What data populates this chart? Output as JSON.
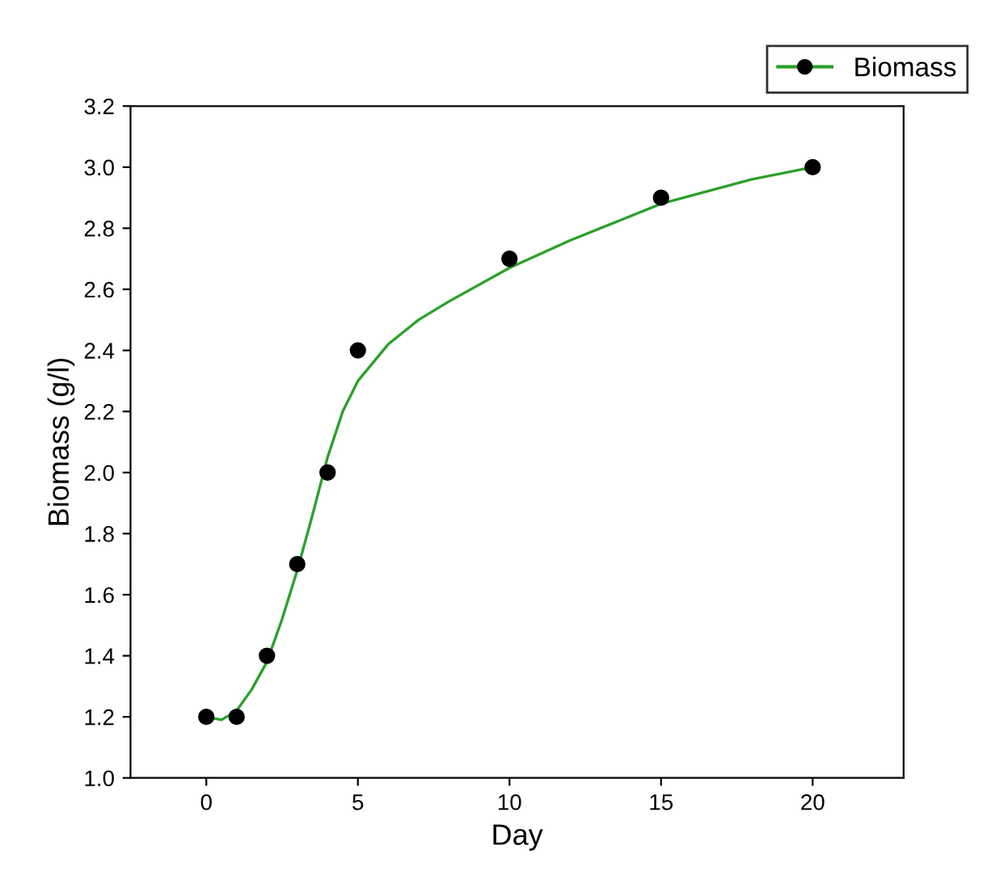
{
  "chart_data": {
    "type": "line",
    "xlabel": "Day",
    "ylabel": "Biomass (g/l)",
    "series": [
      {
        "name": "Biomass",
        "type": "scatter",
        "marker": "circle",
        "color": "#000000",
        "x": [
          0,
          1,
          2,
          3,
          4,
          5,
          10,
          15,
          20
        ],
        "values": [
          1.2,
          1.2,
          1.4,
          1.7,
          2.0,
          2.4,
          2.7,
          2.9,
          3.0
        ]
      },
      {
        "marker": "none",
        "color": "#2ca02c",
        "x": [
          0,
          0.5,
          1,
          1.5,
          2,
          2.5,
          3,
          3.5,
          4,
          4.5,
          5,
          6,
          7,
          8,
          10,
          12,
          15,
          18,
          20
        ],
        "values": [
          1.2,
          1.19,
          1.22,
          1.29,
          1.38,
          1.52,
          1.68,
          1.86,
          2.05,
          2.2,
          2.3,
          2.42,
          2.5,
          2.56,
          2.67,
          2.76,
          2.88,
          2.96,
          3.0
        ]
      }
    ],
    "xlim": [
      -2.5,
      23
    ],
    "xticks": [
      0,
      5,
      10,
      15,
      20
    ],
    "ylim": [
      1.0,
      3.2
    ],
    "yticks": [
      {
        "value": 1.0,
        "label": "1.0"
      },
      1.2,
      1.4,
      1.6,
      1.8,
      {
        "value": 2.0,
        "label": "2.0"
      },
      2.2,
      2.4,
      2.6,
      2.8,
      {
        "value": 3.0,
        "label": "3.0"
      },
      3.2
    ],
    "legend": "top right",
    "grid": false
  }
}
